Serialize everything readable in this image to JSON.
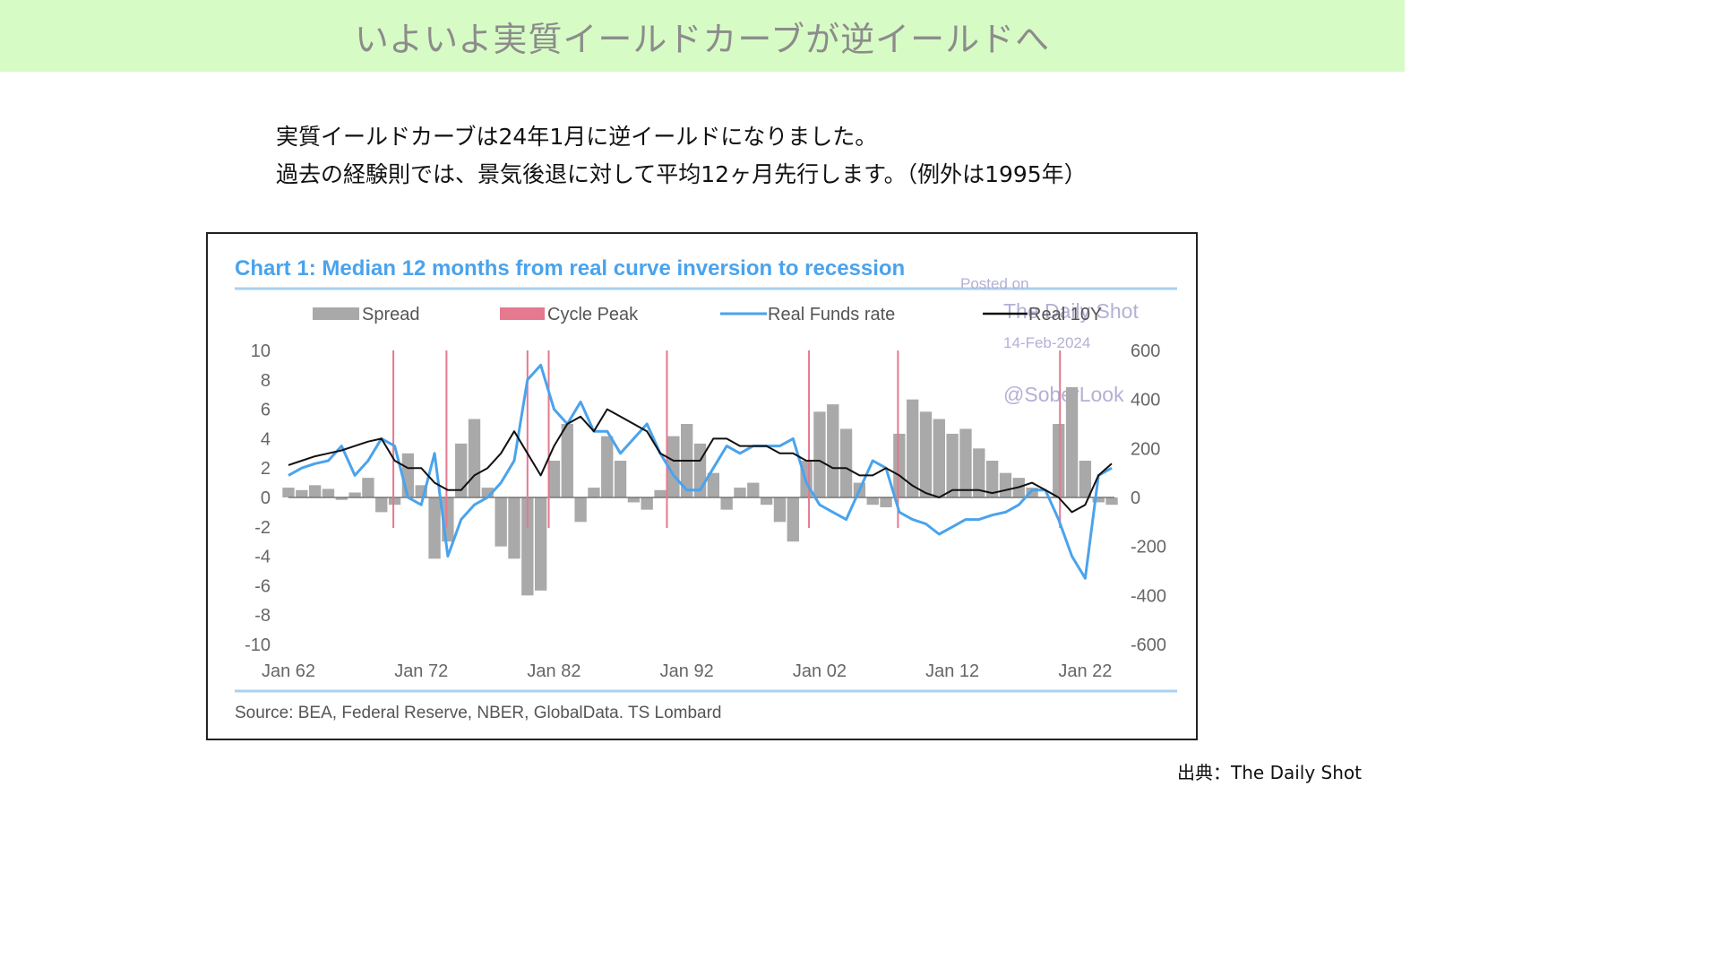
{
  "banner": {
    "title": "いよいよ実質イールドカーブが逆イールドへ"
  },
  "description": {
    "line1": "実質イールドカーブは24年1月に逆イールドになりました。",
    "line2": "過去の経験則では、景気後退に対して平均12ヶ月先行します。（例外は1995年）"
  },
  "chart_data": {
    "type": "area",
    "title": "Chart 1: Median 12 months from real curve inversion to recession",
    "source": "Source: BEA, Federal Reserve, NBER, GlobalData. TS Lombard",
    "watermark": {
      "posted": "Posted on",
      "site": "The Daily Shot",
      "date": "14-Feb-2024",
      "handle": "@SoberLook"
    },
    "legend": [
      "Spread",
      "Cycle Peak",
      "Real Funds rate",
      "Real 10Y"
    ],
    "colors": {
      "spread": "#a9a9a9",
      "cycle_peak": "#e4798f",
      "real_funds": "#4aa3ec",
      "real_10y": "#111111",
      "title": "#4aa3ec"
    },
    "x_ticks": [
      "Jan 62",
      "Jan 72",
      "Jan 82",
      "Jan 92",
      "Jan 02",
      "Jan 12",
      "Jan 22"
    ],
    "x_range": [
      1962,
      2024.2
    ],
    "y_left": {
      "ticks": [
        "10",
        "8",
        "6",
        "4",
        "2",
        "0",
        "-2",
        "-4",
        "-6",
        "-8",
        "-10"
      ],
      "range": [
        -10,
        10
      ],
      "series": [
        "Real Funds rate",
        "Real 10Y"
      ]
    },
    "y_right": {
      "ticks": [
        "600",
        "400",
        "200",
        "0",
        "-200",
        "-400",
        "-600"
      ],
      "range": [
        -600,
        600
      ],
      "series": [
        "Spread"
      ]
    },
    "cycle_peaks": [
      1969.9,
      1973.9,
      1980.0,
      1981.6,
      1990.5,
      2001.2,
      2007.9,
      2020.1
    ],
    "series": [
      {
        "name": "Spread",
        "axis": "right",
        "x": [
          1962,
          1963,
          1964,
          1965,
          1966,
          1967,
          1968,
          1969,
          1970,
          1971,
          1972,
          1973,
          1974,
          1975,
          1976,
          1977,
          1978,
          1979,
          1980,
          1981,
          1982,
          1983,
          1984,
          1985,
          1986,
          1987,
          1988,
          1989,
          1990,
          1991,
          1992,
          1993,
          1994,
          1995,
          1996,
          1997,
          1998,
          1999,
          2000,
          2001,
          2002,
          2003,
          2004,
          2005,
          2006,
          2007,
          2008,
          2009,
          2010,
          2011,
          2012,
          2013,
          2014,
          2015,
          2016,
          2017,
          2018,
          2019,
          2020,
          2021,
          2022,
          2023,
          2024
        ],
        "values": [
          40,
          30,
          50,
          35,
          -10,
          20,
          80,
          -60,
          -30,
          180,
          50,
          -250,
          -180,
          220,
          320,
          40,
          -200,
          -250,
          -400,
          -380,
          150,
          300,
          -100,
          40,
          250,
          150,
          -20,
          -50,
          30,
          250,
          300,
          220,
          100,
          -50,
          40,
          60,
          -30,
          -100,
          -180,
          150,
          350,
          380,
          280,
          60,
          -30,
          -40,
          260,
          400,
          350,
          320,
          260,
          280,
          200,
          150,
          100,
          80,
          40,
          0,
          300,
          450,
          150,
          -20,
          -30
        ]
      },
      {
        "name": "Real Funds rate",
        "axis": "left",
        "x": [
          1962,
          1963,
          1964,
          1965,
          1966,
          1967,
          1968,
          1969,
          1970,
          1971,
          1972,
          1973,
          1974,
          1975,
          1976,
          1977,
          1978,
          1979,
          1980,
          1981,
          1982,
          1983,
          1984,
          1985,
          1986,
          1987,
          1988,
          1989,
          1990,
          1991,
          1992,
          1993,
          1994,
          1995,
          1996,
          1997,
          1998,
          1999,
          2000,
          2001,
          2002,
          2003,
          2004,
          2005,
          2006,
          2007,
          2008,
          2009,
          2010,
          2011,
          2012,
          2013,
          2014,
          2015,
          2016,
          2017,
          2018,
          2019,
          2020,
          2021,
          2022,
          2023,
          2024
        ],
        "values": [
          1.5,
          2.0,
          2.3,
          2.5,
          3.5,
          1.5,
          2.5,
          4.0,
          3.5,
          0.0,
          -0.5,
          3.0,
          -4.0,
          -1.5,
          -0.5,
          0.0,
          1.0,
          2.5,
          8.0,
          9.0,
          6.0,
          5.0,
          6.5,
          4.5,
          4.5,
          3.0,
          4.0,
          5.0,
          3.0,
          1.5,
          0.5,
          0.5,
          2.0,
          3.5,
          3.0,
          3.5,
          3.5,
          3.5,
          4.0,
          1.0,
          -0.5,
          -1.0,
          -1.5,
          0.5,
          2.5,
          2.0,
          -1.0,
          -1.5,
          -1.8,
          -2.5,
          -2.0,
          -1.5,
          -1.5,
          -1.2,
          -1.0,
          -0.5,
          0.5,
          0.5,
          -1.5,
          -4.0,
          -5.5,
          1.5,
          2.0
        ]
      },
      {
        "name": "Real 10Y",
        "axis": "left",
        "x": [
          1962,
          1963,
          1964,
          1965,
          1966,
          1967,
          1968,
          1969,
          1970,
          1971,
          1972,
          1973,
          1974,
          1975,
          1976,
          1977,
          1978,
          1979,
          1980,
          1981,
          1982,
          1983,
          1984,
          1985,
          1986,
          1987,
          1988,
          1989,
          1990,
          1991,
          1992,
          1993,
          1994,
          1995,
          1996,
          1997,
          1998,
          1999,
          2000,
          2001,
          2002,
          2003,
          2004,
          2005,
          2006,
          2007,
          2008,
          2009,
          2010,
          2011,
          2012,
          2013,
          2014,
          2015,
          2016,
          2017,
          2018,
          2019,
          2020,
          2021,
          2022,
          2023,
          2024
        ],
        "values": [
          2.2,
          2.5,
          2.8,
          3.0,
          3.2,
          3.5,
          3.8,
          4.0,
          2.5,
          2.0,
          2.0,
          1.0,
          0.5,
          0.5,
          1.5,
          2.0,
          3.0,
          4.5,
          3.0,
          1.5,
          3.5,
          5.0,
          5.5,
          4.5,
          6.0,
          5.5,
          5.0,
          4.5,
          3.0,
          2.5,
          2.5,
          2.5,
          4.0,
          4.0,
          3.5,
          3.5,
          3.5,
          3.0,
          3.0,
          2.5,
          2.5,
          2.0,
          2.0,
          1.5,
          1.5,
          2.0,
          1.5,
          0.8,
          0.3,
          0.0,
          0.5,
          0.5,
          0.5,
          0.3,
          0.5,
          0.7,
          1.0,
          0.5,
          0.0,
          -1.0,
          -0.5,
          1.5,
          2.3
        ]
      }
    ]
  },
  "footer": {
    "credit": "出典：The Daily Shot"
  }
}
